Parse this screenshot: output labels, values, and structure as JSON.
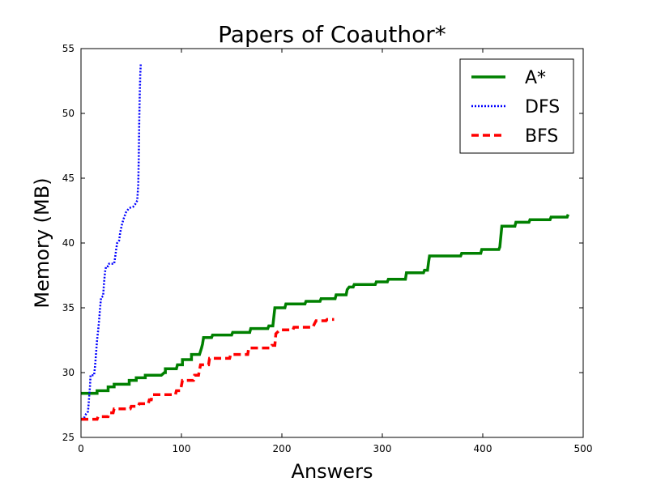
{
  "chart_data": {
    "type": "line",
    "title": "Papers of Coauthor*",
    "xlabel": "Answers",
    "ylabel": "Memory (MB)",
    "xlim": [
      0,
      500
    ],
    "ylim": [
      25,
      55
    ],
    "xticks": [
      0,
      100,
      200,
      300,
      400,
      500
    ],
    "yticks": [
      25,
      30,
      35,
      40,
      45,
      50,
      55
    ],
    "grid": false,
    "legend_position": "top-right",
    "series": [
      {
        "name": "A*",
        "color": "#008000",
        "style": "solid",
        "points": [
          [
            0,
            28.4
          ],
          [
            16,
            28.4
          ],
          [
            16,
            28.6
          ],
          [
            27,
            28.6
          ],
          [
            27,
            28.9
          ],
          [
            33,
            28.9
          ],
          [
            33,
            29.1
          ],
          [
            48,
            29.1
          ],
          [
            48,
            29.4
          ],
          [
            55,
            29.4
          ],
          [
            55,
            29.6
          ],
          [
            64,
            29.6
          ],
          [
            64,
            29.8
          ],
          [
            80,
            29.8
          ],
          [
            83,
            30.0
          ],
          [
            84,
            30.0
          ],
          [
            84,
            30.3
          ],
          [
            95,
            30.3
          ],
          [
            96,
            30.6
          ],
          [
            101,
            30.6
          ],
          [
            101,
            31.0
          ],
          [
            110,
            31.0
          ],
          [
            110,
            31.4
          ],
          [
            118,
            31.4
          ],
          [
            120,
            31.9
          ],
          [
            121,
            32.2
          ],
          [
            122,
            32.7
          ],
          [
            130,
            32.7
          ],
          [
            131,
            32.9
          ],
          [
            150,
            32.9
          ],
          [
            151,
            33.1
          ],
          [
            168,
            33.1
          ],
          [
            169,
            33.4
          ],
          [
            186,
            33.4
          ],
          [
            187,
            33.6
          ],
          [
            191,
            33.6
          ],
          [
            192,
            34.3
          ],
          [
            193,
            35.0
          ],
          [
            203,
            35.0
          ],
          [
            204,
            35.3
          ],
          [
            223,
            35.3
          ],
          [
            224,
            35.5
          ],
          [
            238,
            35.5
          ],
          [
            239,
            35.7
          ],
          [
            253,
            35.7
          ],
          [
            254,
            36.0
          ],
          [
            264,
            36.0
          ],
          [
            265,
            36.4
          ],
          [
            267,
            36.6
          ],
          [
            271,
            36.6
          ],
          [
            272,
            36.8
          ],
          [
            293,
            36.8
          ],
          [
            294,
            37.0
          ],
          [
            305,
            37.0
          ],
          [
            306,
            37.2
          ],
          [
            323,
            37.2
          ],
          [
            324,
            37.7
          ],
          [
            341,
            37.7
          ],
          [
            342,
            37.9
          ],
          [
            345,
            37.9
          ],
          [
            346,
            38.5
          ],
          [
            347,
            39.0
          ],
          [
            378,
            39.0
          ],
          [
            379,
            39.2
          ],
          [
            398,
            39.2
          ],
          [
            399,
            39.5
          ],
          [
            416,
            39.5
          ],
          [
            417,
            39.7
          ],
          [
            418,
            40.5
          ],
          [
            419,
            41.3
          ],
          [
            432,
            41.3
          ],
          [
            433,
            41.6
          ],
          [
            446,
            41.6
          ],
          [
            447,
            41.8
          ],
          [
            467,
            41.8
          ],
          [
            468,
            42.0
          ],
          [
            484,
            42.0
          ],
          [
            485,
            42.2
          ]
        ]
      },
      {
        "name": "DFS",
        "color": "#0000ff",
        "style": "dotted",
        "points": [
          [
            0,
            26.4
          ],
          [
            3,
            26.5
          ],
          [
            5,
            26.8
          ],
          [
            7,
            27.0
          ],
          [
            8,
            28.0
          ],
          [
            9,
            29.0
          ],
          [
            9.5,
            29.8
          ],
          [
            13,
            29.8
          ],
          [
            14,
            30.5
          ],
          [
            15,
            31.5
          ],
          [
            16,
            32.5
          ],
          [
            17,
            33.2
          ],
          [
            18,
            34.0
          ],
          [
            19,
            35.0
          ],
          [
            20,
            35.8
          ],
          [
            22,
            35.9
          ],
          [
            23,
            37.0
          ],
          [
            24,
            37.8
          ],
          [
            25,
            38.2
          ],
          [
            27,
            38.2
          ],
          [
            28,
            38.4
          ],
          [
            33,
            38.4
          ],
          [
            34,
            38.9
          ],
          [
            35,
            39.5
          ],
          [
            36,
            40.0
          ],
          [
            38,
            40.2
          ],
          [
            39,
            40.8
          ],
          [
            41,
            41.5
          ],
          [
            43,
            42.0
          ],
          [
            45,
            42.4
          ],
          [
            48,
            42.7
          ],
          [
            52,
            42.8
          ],
          [
            53,
            42.9
          ],
          [
            55,
            43.1
          ],
          [
            56,
            43.3
          ],
          [
            57,
            44.5
          ],
          [
            57.5,
            46.5
          ],
          [
            58,
            49.5
          ],
          [
            58.5,
            51.5
          ],
          [
            59,
            53.0
          ],
          [
            59.5,
            53.8
          ]
        ]
      },
      {
        "name": "BFS",
        "color": "#ff0000",
        "style": "dashed",
        "points": [
          [
            0,
            26.4
          ],
          [
            16,
            26.4
          ],
          [
            17,
            26.6
          ],
          [
            27,
            26.6
          ],
          [
            28,
            26.9
          ],
          [
            32,
            26.9
          ],
          [
            33,
            27.2
          ],
          [
            49,
            27.2
          ],
          [
            50,
            27.4
          ],
          [
            57,
            27.4
          ],
          [
            58,
            27.6
          ],
          [
            67,
            27.6
          ],
          [
            68,
            27.9
          ],
          [
            70,
            27.9
          ],
          [
            71,
            28.3
          ],
          [
            94,
            28.3
          ],
          [
            95,
            28.6
          ],
          [
            99,
            28.6
          ],
          [
            100,
            29.0
          ],
          [
            101,
            29.4
          ],
          [
            112,
            29.4
          ],
          [
            113,
            29.8
          ],
          [
            117,
            29.8
          ],
          [
            118,
            30.2
          ],
          [
            119,
            30.6
          ],
          [
            127,
            30.6
          ],
          [
            128,
            31.1
          ],
          [
            148,
            31.1
          ],
          [
            149,
            31.4
          ],
          [
            166,
            31.4
          ],
          [
            167,
            31.9
          ],
          [
            189,
            31.9
          ],
          [
            190,
            32.1
          ],
          [
            193,
            32.1
          ],
          [
            194,
            33.0
          ],
          [
            198,
            33.3
          ],
          [
            211,
            33.3
          ],
          [
            212,
            33.5
          ],
          [
            231,
            33.5
          ],
          [
            232,
            33.7
          ],
          [
            234,
            34.0
          ],
          [
            244,
            34.0
          ],
          [
            245,
            34.1
          ],
          [
            252,
            34.1
          ]
        ]
      }
    ]
  }
}
